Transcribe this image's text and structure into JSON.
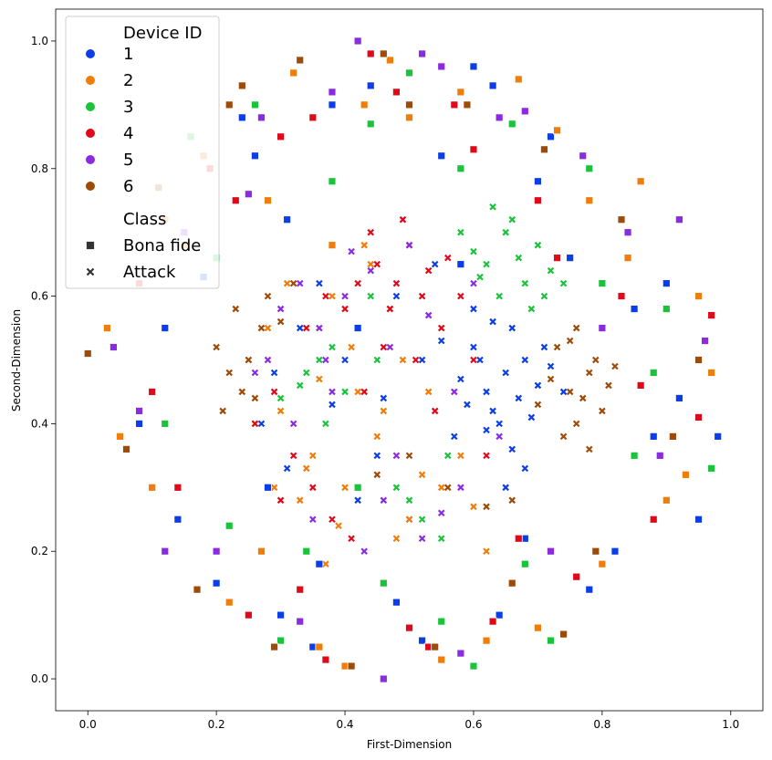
{
  "chart_data": {
    "type": "scatter",
    "xlabel": "First-Dimension",
    "ylabel": "Second-Dimension",
    "xlim": [
      -0.05,
      1.05
    ],
    "ylim": [
      -0.05,
      1.05
    ],
    "xticks": [
      "0.0",
      "0.2",
      "0.4",
      "0.6",
      "0.8",
      "1.0"
    ],
    "yticks": [
      "0.0",
      "0.2",
      "0.4",
      "0.6",
      "0.8",
      "1.0"
    ],
    "grid": false,
    "legend": {
      "placement": "top-left",
      "hue_title": "Device ID",
      "hue_entries": [
        "1",
        "2",
        "3",
        "4",
        "5",
        "6"
      ],
      "style_title": "Class",
      "style_entries": [
        "Bona fide",
        "Attack"
      ]
    },
    "colors": {
      "1": "#0b3ee6",
      "2": "#f07c0a",
      "3": "#1ac43a",
      "4": "#e0091a",
      "5": "#8a2be2",
      "6": "#9e4a08",
      "legend_marker": "#333333"
    },
    "series": [
      {
        "name": "1",
        "class": "Attack",
        "x": [
          0.62,
          0.65,
          0.68,
          0.6,
          0.63,
          0.66,
          0.7,
          0.58,
          0.61,
          0.64,
          0.67,
          0.72,
          0.55,
          0.59,
          0.69,
          0.71,
          0.57,
          0.66,
          0.63,
          0.6,
          0.74,
          0.52,
          0.68,
          0.65,
          0.62,
          0.48,
          0.45,
          0.38,
          0.33,
          0.29,
          0.42,
          0.5,
          0.36,
          0.27,
          0.4,
          0.31,
          0.54,
          0.46
        ],
        "y": [
          0.45,
          0.48,
          0.5,
          0.52,
          0.42,
          0.55,
          0.46,
          0.47,
          0.5,
          0.4,
          0.44,
          0.49,
          0.53,
          0.43,
          0.41,
          0.52,
          0.38,
          0.36,
          0.56,
          0.58,
          0.45,
          0.5,
          0.33,
          0.3,
          0.39,
          0.6,
          0.35,
          0.43,
          0.55,
          0.48,
          0.28,
          0.25,
          0.62,
          0.4,
          0.5,
          0.33,
          0.65,
          0.44
        ]
      },
      {
        "name": "2",
        "class": "Attack",
        "x": [
          0.35,
          0.4,
          0.45,
          0.5,
          0.3,
          0.25,
          0.38,
          0.44,
          0.52,
          0.28,
          0.33,
          0.42,
          0.48,
          0.55,
          0.6,
          0.36,
          0.41,
          0.47,
          0.26,
          0.31,
          0.58,
          0.62,
          0.34,
          0.39,
          0.46,
          0.53,
          0.29,
          0.43,
          0.49,
          0.37
        ],
        "y": [
          0.35,
          0.3,
          0.38,
          0.25,
          0.42,
          0.5,
          0.6,
          0.65,
          0.32,
          0.55,
          0.28,
          0.45,
          0.22,
          0.3,
          0.27,
          0.47,
          0.52,
          0.58,
          0.4,
          0.62,
          0.35,
          0.2,
          0.33,
          0.24,
          0.42,
          0.45,
          0.3,
          0.68,
          0.5,
          0.18
        ]
      },
      {
        "name": "3",
        "class": "Attack",
        "x": [
          0.62,
          0.65,
          0.68,
          0.7,
          0.66,
          0.64,
          0.6,
          0.72,
          0.69,
          0.63,
          0.58,
          0.67,
          0.71,
          0.36,
          0.34,
          0.38,
          0.4,
          0.42,
          0.33,
          0.45,
          0.5,
          0.52,
          0.48,
          0.55,
          0.37,
          0.3,
          0.44,
          0.56,
          0.61,
          0.74
        ],
        "y": [
          0.65,
          0.7,
          0.62,
          0.68,
          0.72,
          0.6,
          0.67,
          0.64,
          0.58,
          0.74,
          0.7,
          0.66,
          0.6,
          0.5,
          0.48,
          0.52,
          0.45,
          0.55,
          0.46,
          0.5,
          0.28,
          0.25,
          0.3,
          0.22,
          0.4,
          0.44,
          0.6,
          0.35,
          0.63,
          0.62
        ]
      },
      {
        "name": "4",
        "class": "Attack",
        "x": [
          0.45,
          0.48,
          0.5,
          0.52,
          0.47,
          0.44,
          0.55,
          0.42,
          0.49,
          0.53,
          0.4,
          0.51,
          0.46,
          0.58,
          0.35,
          0.32,
          0.3,
          0.38,
          0.26,
          0.41,
          0.6,
          0.43,
          0.56,
          0.34,
          0.29,
          0.37,
          0.54,
          0.62
        ],
        "y": [
          0.65,
          0.62,
          0.68,
          0.6,
          0.58,
          0.7,
          0.55,
          0.62,
          0.72,
          0.64,
          0.58,
          0.5,
          0.52,
          0.6,
          0.3,
          0.35,
          0.28,
          0.25,
          0.4,
          0.22,
          0.5,
          0.45,
          0.66,
          0.55,
          0.45,
          0.6,
          0.42,
          0.35
        ]
      },
      {
        "name": "5",
        "class": "Attack",
        "x": [
          0.3,
          0.33,
          0.36,
          0.4,
          0.44,
          0.47,
          0.5,
          0.28,
          0.35,
          0.42,
          0.46,
          0.52,
          0.55,
          0.58,
          0.38,
          0.32,
          0.26,
          0.48,
          0.53,
          0.41,
          0.6,
          0.64,
          0.57,
          0.37,
          0.43
        ],
        "y": [
          0.58,
          0.62,
          0.55,
          0.6,
          0.64,
          0.52,
          0.68,
          0.5,
          0.25,
          0.3,
          0.28,
          0.22,
          0.26,
          0.3,
          0.45,
          0.4,
          0.48,
          0.35,
          0.57,
          0.67,
          0.62,
          0.38,
          0.45,
          0.5,
          0.2
        ]
      },
      {
        "name": "6",
        "class": "Attack",
        "x": [
          0.75,
          0.78,
          0.8,
          0.76,
          0.72,
          0.79,
          0.74,
          0.77,
          0.81,
          0.73,
          0.7,
          0.82,
          0.76,
          0.78,
          0.75,
          0.22,
          0.25,
          0.2,
          0.24,
          0.27,
          0.23,
          0.26,
          0.21,
          0.28,
          0.3,
          0.32,
          0.56,
          0.62,
          0.66,
          0.5,
          0.45
        ],
        "y": [
          0.45,
          0.48,
          0.42,
          0.4,
          0.47,
          0.5,
          0.38,
          0.44,
          0.46,
          0.52,
          0.43,
          0.49,
          0.55,
          0.36,
          0.53,
          0.48,
          0.5,
          0.52,
          0.45,
          0.55,
          0.58,
          0.44,
          0.42,
          0.6,
          0.56,
          0.62,
          0.3,
          0.27,
          0.28,
          0.35,
          0.32
        ]
      },
      {
        "name": "1",
        "class": "Bona fide",
        "x": [
          0.24,
          0.31,
          0.42,
          0.55,
          0.63,
          0.7,
          0.82,
          0.12,
          0.2,
          0.35,
          0.48,
          0.75,
          0.88,
          0.95,
          0.18,
          0.28,
          0.38,
          0.58,
          0.68,
          0.85,
          0.92,
          0.14,
          0.26,
          0.36,
          0.52,
          0.64,
          0.78,
          0.9,
          0.08,
          0.98,
          0.3,
          0.44,
          0.6,
          0.72
        ],
        "y": [
          0.88,
          0.72,
          0.55,
          0.82,
          0.93,
          0.78,
          0.2,
          0.55,
          0.15,
          0.05,
          0.12,
          0.66,
          0.38,
          0.25,
          0.63,
          0.3,
          0.9,
          0.65,
          0.22,
          0.58,
          0.44,
          0.25,
          0.82,
          0.18,
          0.06,
          0.1,
          0.14,
          0.62,
          0.4,
          0.38,
          0.1,
          0.93,
          0.96,
          0.85
        ]
      },
      {
        "name": "2",
        "class": "Bona fide",
        "x": [
          0.03,
          0.18,
          0.32,
          0.47,
          0.58,
          0.73,
          0.86,
          0.97,
          0.1,
          0.22,
          0.4,
          0.62,
          0.8,
          0.93,
          0.05,
          0.15,
          0.28,
          0.43,
          0.55,
          0.7,
          0.84,
          0.95,
          0.12,
          0.36,
          0.5,
          0.67,
          0.9,
          0.27,
          0.78,
          0.38
        ],
        "y": [
          0.55,
          0.82,
          0.95,
          0.97,
          0.92,
          0.86,
          0.78,
          0.48,
          0.3,
          0.12,
          0.02,
          0.06,
          0.18,
          0.32,
          0.38,
          0.68,
          0.75,
          0.9,
          0.03,
          0.08,
          0.66,
          0.6,
          0.72,
          0.05,
          0.88,
          0.94,
          0.28,
          0.2,
          0.75,
          0.68
        ]
      },
      {
        "name": "3",
        "class": "Bona fide",
        "x": [
          0.16,
          0.26,
          0.38,
          0.5,
          0.66,
          0.78,
          0.9,
          0.12,
          0.22,
          0.46,
          0.6,
          0.72,
          0.85,
          0.97,
          0.3,
          0.42,
          0.55,
          0.68,
          0.8,
          0.2,
          0.34,
          0.58,
          0.88,
          0.44
        ],
        "y": [
          0.85,
          0.9,
          0.78,
          0.95,
          0.87,
          0.8,
          0.58,
          0.4,
          0.24,
          0.15,
          0.02,
          0.06,
          0.35,
          0.33,
          0.06,
          0.3,
          0.09,
          0.18,
          0.62,
          0.66,
          0.2,
          0.8,
          0.48,
          0.87
        ]
      },
      {
        "name": "4",
        "class": "Bona fide",
        "x": [
          0.08,
          0.19,
          0.3,
          0.44,
          0.57,
          0.7,
          0.83,
          0.95,
          0.14,
          0.25,
          0.37,
          0.5,
          0.63,
          0.76,
          0.88,
          0.1,
          0.23,
          0.35,
          0.48,
          0.6,
          0.73,
          0.86,
          0.97,
          0.33,
          0.53,
          0.67
        ],
        "y": [
          0.62,
          0.8,
          0.85,
          0.98,
          0.9,
          0.75,
          0.6,
          0.41,
          0.3,
          0.1,
          0.03,
          0.08,
          0.09,
          0.16,
          0.25,
          0.45,
          0.75,
          0.88,
          0.92,
          0.83,
          0.66,
          0.46,
          0.57,
          0.14,
          0.05,
          0.22
        ]
      },
      {
        "name": "5",
        "class": "Bona fide",
        "x": [
          0.04,
          0.15,
          0.27,
          0.42,
          0.55,
          0.68,
          0.8,
          0.92,
          0.08,
          0.2,
          0.33,
          0.46,
          0.58,
          0.72,
          0.84,
          0.96,
          0.12,
          0.25,
          0.38,
          0.52,
          0.64,
          0.77,
          0.89
        ],
        "y": [
          0.52,
          0.7,
          0.88,
          1.0,
          0.96,
          0.89,
          0.55,
          0.72,
          0.42,
          0.2,
          0.09,
          0.0,
          0.04,
          0.2,
          0.7,
          0.53,
          0.2,
          0.76,
          0.92,
          0.98,
          0.88,
          0.82,
          0.35
        ]
      },
      {
        "name": "6",
        "class": "Bona fide",
        "x": [
          0.0,
          0.11,
          0.22,
          0.33,
          0.46,
          0.59,
          0.71,
          0.83,
          0.95,
          0.06,
          0.17,
          0.29,
          0.41,
          0.54,
          0.66,
          0.79,
          0.91,
          0.24,
          0.5,
          0.74
        ],
        "y": [
          0.51,
          0.77,
          0.9,
          0.97,
          0.98,
          0.9,
          0.83,
          0.72,
          0.5,
          0.36,
          0.14,
          0.05,
          0.02,
          0.05,
          0.15,
          0.2,
          0.38,
          0.93,
          0.9,
          0.07
        ]
      }
    ]
  }
}
